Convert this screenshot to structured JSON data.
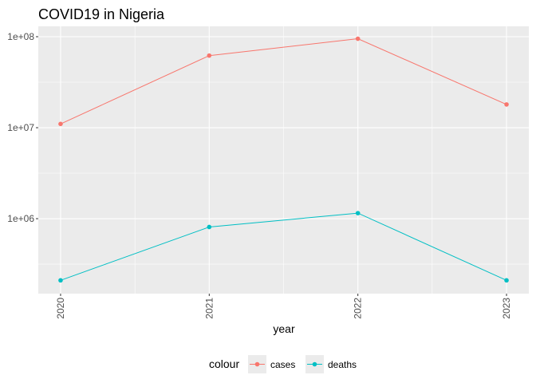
{
  "chart_data": {
    "type": "line",
    "title": "COVID19 in Nigeria",
    "xlabel": "year",
    "ylabel": "",
    "x": [
      2020,
      2021,
      2022,
      2023
    ],
    "x_tick_labels": [
      "2020",
      "2021",
      "2022",
      "2023"
    ],
    "y_scale": "log10",
    "y_ticks": [
      1000000,
      10000000,
      100000000
    ],
    "y_tick_labels": [
      "1e+06",
      "1e+07",
      "1e+08"
    ],
    "ylim": [
      150000,
      130000000
    ],
    "grid": true,
    "legend_position": "bottom",
    "legend_title": "colour",
    "series": [
      {
        "name": "cases",
        "color": "#F8766D",
        "values": [
          11000000,
          62000000,
          95000000,
          18000000
        ]
      },
      {
        "name": "deaths",
        "color": "#00BFC4",
        "values": [
          210000,
          810000,
          1150000,
          210000
        ]
      }
    ]
  },
  "colors": {
    "panel_background": "#EBEBEB",
    "grid_major": "#FFFFFF",
    "tick": "#333333"
  }
}
